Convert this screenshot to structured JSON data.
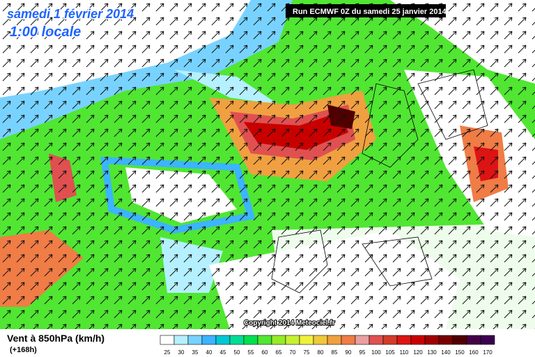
{
  "header": {
    "title": "samedi 1 février 2014",
    "time": "1:00 locale"
  },
  "run_info": "Run ECMWF 0Z du samedi 25 janvier 2014",
  "copyright": "Copyright 2014 Meteociel.fr",
  "legend": {
    "title": "Vent à 850hPa (km/h)",
    "forecast": "(+168h)",
    "items": [
      {
        "label": "25",
        "color": "#ffffff"
      },
      {
        "label": "30",
        "color": "#b4f0ff"
      },
      {
        "label": "35",
        "color": "#78d2ff"
      },
      {
        "label": "40",
        "color": "#3cb4ff"
      },
      {
        "label": "45",
        "color": "#00c8d2"
      },
      {
        "label": "50",
        "color": "#00dc96"
      },
      {
        "label": "55",
        "color": "#00e050"
      },
      {
        "label": "60",
        "color": "#50e632"
      },
      {
        "label": "65",
        "color": "#96eb28"
      },
      {
        "label": "70",
        "color": "#c8f032"
      },
      {
        "label": "75",
        "color": "#f0f03c"
      },
      {
        "label": "80",
        "color": "#f0c83c"
      },
      {
        "label": "85",
        "color": "#f0a040"
      },
      {
        "label": "90",
        "color": "#f07c46"
      },
      {
        "label": "95",
        "color": "#e8a0a0"
      },
      {
        "label": "100",
        "color": "#e05050"
      },
      {
        "label": "105",
        "color": "#d23c28"
      },
      {
        "label": "110",
        "color": "#dc1414"
      },
      {
        "label": "120",
        "color": "#c80000"
      },
      {
        "label": "130",
        "color": "#a00000"
      },
      {
        "label": "140",
        "color": "#780000"
      },
      {
        "label": "150",
        "color": "#500000"
      },
      {
        "label": "160",
        "color": "#460046"
      },
      {
        "label": "170",
        "color": "#3c0050"
      }
    ]
  }
}
